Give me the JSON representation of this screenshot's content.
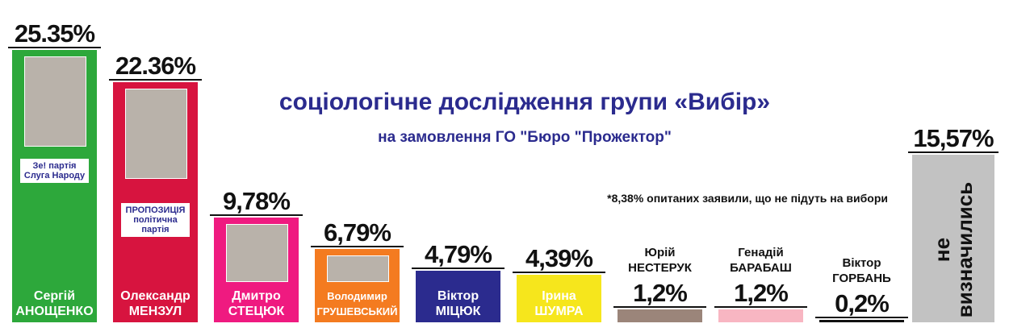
{
  "chart_data": {
    "type": "bar",
    "title": "соціологічне дослідження групи «Вибір»",
    "subtitle": "на замовлення ГО \"Бюро \"Прожектор\"",
    "annotation": "*8,38% опитаних заявили, що не підуть на вибори",
    "categories": [
      "Сергій АНОЩЕНКО",
      "Олександр МЕНЗУЛ",
      "Дмитро СТЕЦЮК",
      "Володимир ГРУШЕВСЬКИЙ",
      "Віктор МІЦЮК",
      "Ірина ШУМРА",
      "Юрій НЕСТЕРУК",
      "Генадій БАРАБАШ",
      "Віктор ГОРБАНЬ",
      "не визначились"
    ],
    "values": [
      25.35,
      22.36,
      9.78,
      6.79,
      4.79,
      4.39,
      1.2,
      1.2,
      0.2,
      15.57
    ],
    "value_labels": [
      "25.35%",
      "22.36%",
      "9,78%",
      "6,79%",
      "4,79%",
      "4,39%",
      "1,2%",
      "1,2%",
      "0,2%",
      "15,57%"
    ],
    "colors": [
      "#2da83b",
      "#d7143f",
      "#ef1a80",
      "#f47b20",
      "#2b2b8e",
      "#f6e61c",
      "#9b857a",
      "#f8b6c2",
      "#111111",
      "#c2c2c2"
    ],
    "parties": [
      "Зе! партія Слуга Народу",
      "ПРОПОЗИЦІЯ політична партія",
      null,
      null,
      null,
      null,
      null,
      null,
      null,
      null
    ]
  }
}
